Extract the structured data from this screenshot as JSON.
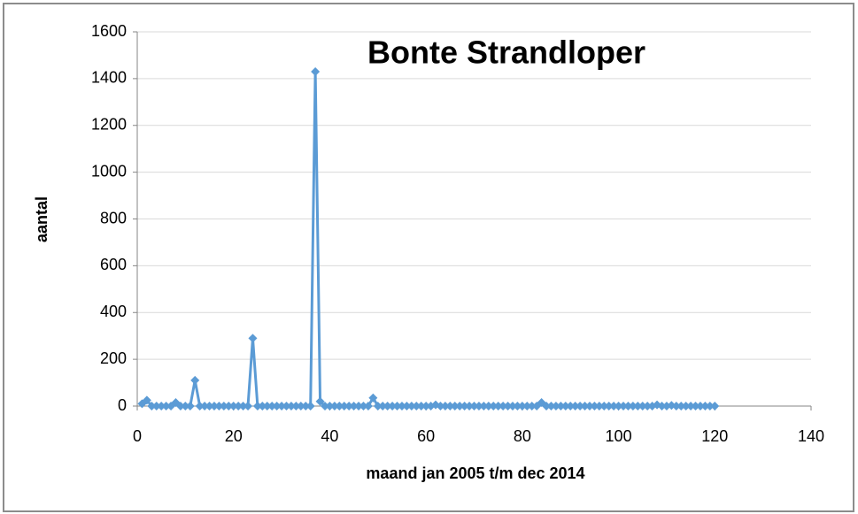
{
  "chart_data": {
    "type": "line",
    "title": "Bonte Strandloper",
    "x_label": "maand jan 2005 t/m dec 2014",
    "y_label": "aantal",
    "x": [
      1,
      2,
      3,
      4,
      5,
      6,
      7,
      8,
      9,
      10,
      11,
      12,
      13,
      14,
      15,
      16,
      17,
      18,
      19,
      20,
      21,
      22,
      23,
      24,
      25,
      26,
      27,
      28,
      29,
      30,
      31,
      32,
      33,
      34,
      35,
      36,
      37,
      38,
      39,
      40,
      41,
      42,
      43,
      44,
      45,
      46,
      47,
      48,
      49,
      50,
      51,
      52,
      53,
      54,
      55,
      56,
      57,
      58,
      59,
      60,
      61,
      62,
      63,
      64,
      65,
      66,
      67,
      68,
      69,
      70,
      71,
      72,
      73,
      74,
      75,
      76,
      77,
      78,
      79,
      80,
      81,
      82,
      83,
      84,
      85,
      86,
      87,
      88,
      89,
      90,
      91,
      92,
      93,
      94,
      95,
      96,
      97,
      98,
      99,
      100,
      101,
      102,
      103,
      104,
      105,
      106,
      107,
      108,
      109,
      110,
      111,
      112,
      113,
      114,
      115,
      116,
      117,
      118,
      119,
      120
    ],
    "values": [
      10,
      25,
      0,
      0,
      0,
      0,
      0,
      15,
      0,
      0,
      0,
      110,
      0,
      0,
      0,
      0,
      0,
      0,
      0,
      0,
      0,
      0,
      0,
      290,
      0,
      0,
      0,
      0,
      0,
      0,
      0,
      0,
      0,
      0,
      0,
      0,
      1430,
      20,
      0,
      0,
      0,
      0,
      0,
      0,
      0,
      0,
      0,
      0,
      35,
      0,
      0,
      0,
      0,
      0,
      0,
      0,
      0,
      0,
      0,
      0,
      0,
      5,
      0,
      0,
      0,
      0,
      0,
      0,
      0,
      0,
      0,
      0,
      0,
      0,
      0,
      0,
      0,
      0,
      0,
      0,
      0,
      0,
      0,
      15,
      0,
      0,
      0,
      0,
      0,
      0,
      0,
      0,
      0,
      0,
      0,
      0,
      0,
      0,
      0,
      0,
      0,
      0,
      0,
      0,
      0,
      0,
      0,
      5,
      0,
      0,
      3,
      0,
      0,
      0,
      0,
      0,
      0,
      0,
      0,
      0
    ],
    "color": "#5b9bd5",
    "xlim": [
      0,
      140
    ],
    "xticks": [
      0,
      20,
      40,
      60,
      80,
      100,
      120,
      140
    ],
    "ylim": [
      0,
      1600
    ],
    "yticks": [
      0,
      200,
      400,
      600,
      800,
      1000,
      1200,
      1400,
      1600
    ],
    "grid": true
  }
}
